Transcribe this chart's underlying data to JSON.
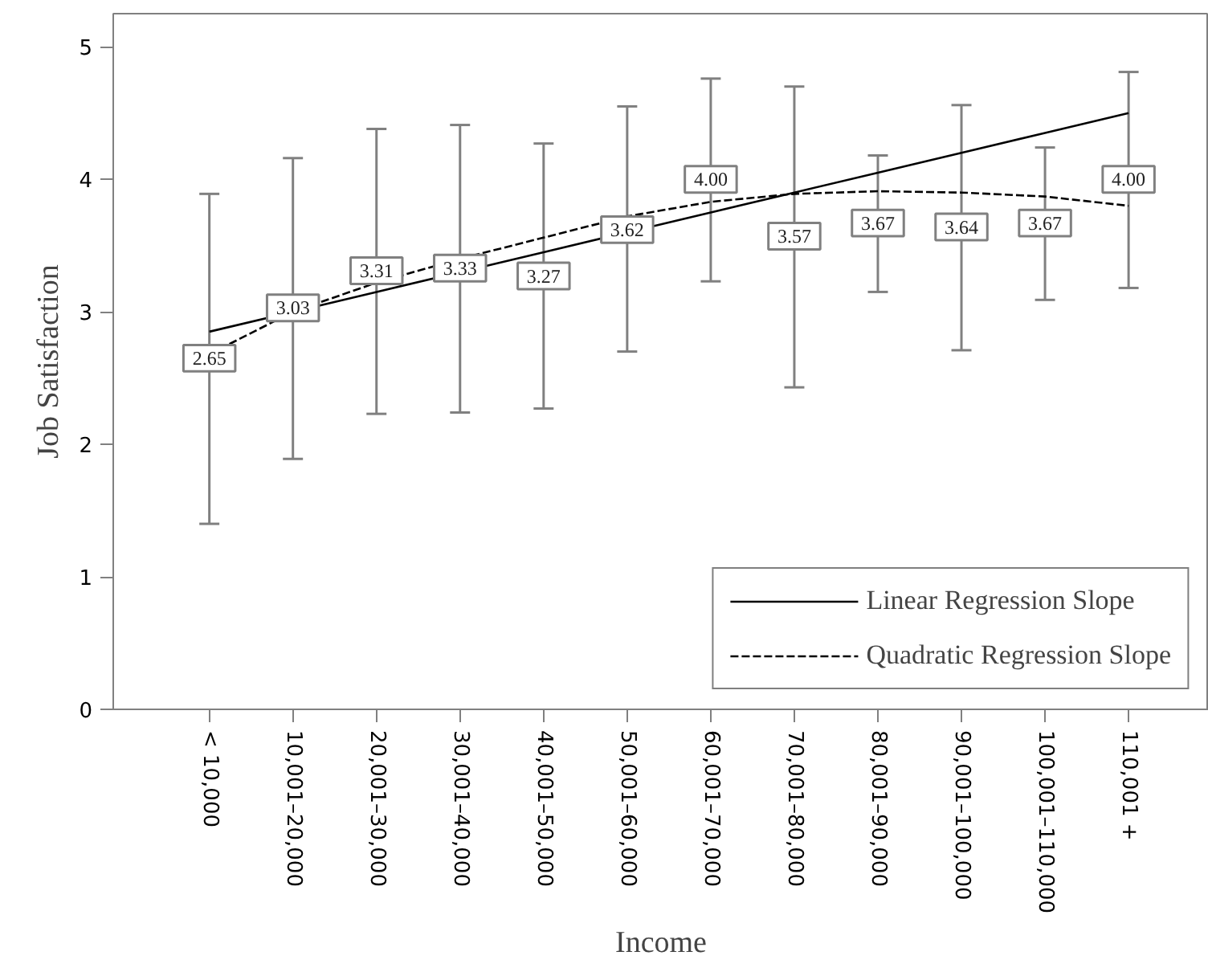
{
  "chart_data": {
    "type": "scatter",
    "xlabel": "Income",
    "ylabel": "Job Satisfaction",
    "categories": [
      "< 10,000",
      "10,001–20,000",
      "20,001–30,000",
      "30,001–40,000",
      "40,001–50,000",
      "50,001–60,000",
      "60,001–70,000",
      "70,001–80,000",
      "80,001–90,000",
      "90,001–100,000",
      "100,001–110,000",
      "110,001 +"
    ],
    "series": [
      {
        "color": "#808080",
        "marker": "square",
        "values": [
          2.65,
          3.03,
          3.31,
          3.33,
          3.27,
          3.62,
          4.0,
          3.57,
          3.67,
          3.64,
          3.67,
          4.0
        ],
        "value_labels": [
          "2.65",
          "3.03",
          "3.31",
          "3.33",
          "3.27",
          "3.62",
          "4.00",
          "3.57",
          "3.67",
          "3.64",
          "3.67",
          "4.00"
        ],
        "errors": [
          [
            1.4,
            3.89
          ],
          [
            1.89,
            4.16
          ],
          [
            2.23,
            4.38
          ],
          [
            2.24,
            4.41
          ],
          [
            2.27,
            4.27
          ],
          [
            2.7,
            4.55
          ],
          [
            3.23,
            4.76
          ],
          [
            2.43,
            4.7
          ],
          [
            3.15,
            4.18
          ],
          [
            2.71,
            4.56
          ],
          [
            3.09,
            4.24
          ],
          [
            3.18,
            4.81
          ]
        ]
      },
      {
        "type": "line",
        "name": "Linear Regression Slope",
        "color": "#000000",
        "line_style": "solid",
        "values": [
          2.85,
          3.0,
          3.15,
          3.3,
          3.45,
          3.6,
          3.75,
          3.9,
          4.05,
          4.2,
          4.35,
          4.5
        ]
      },
      {
        "type": "line",
        "name": "Quadratic Regression Slope",
        "color": "#000000",
        "line_style": "dashed",
        "values": [
          2.68,
          3.0,
          3.22,
          3.4,
          3.56,
          3.72,
          3.83,
          3.89,
          3.91,
          3.9,
          3.87,
          3.8
        ]
      }
    ],
    "ylim": [
      0,
      5.25
    ],
    "yticks": [
      0,
      1,
      2,
      3,
      4,
      5
    ],
    "grid": false,
    "legend": "bottom right"
  }
}
